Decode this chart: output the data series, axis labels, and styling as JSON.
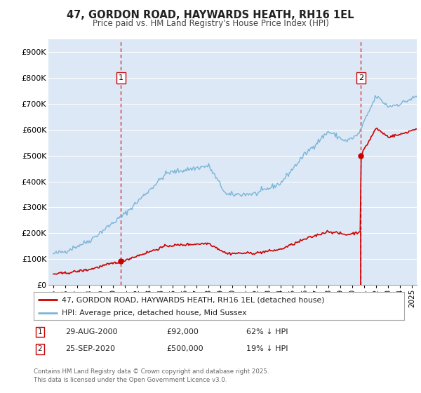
{
  "title": "47, GORDON ROAD, HAYWARDS HEATH, RH16 1EL",
  "subtitle": "Price paid vs. HM Land Registry's House Price Index (HPI)",
  "ylim": [
    0,
    950000
  ],
  "yticks": [
    0,
    100000,
    200000,
    300000,
    400000,
    500000,
    600000,
    700000,
    800000,
    900000
  ],
  "ytick_labels": [
    "£0",
    "£100K",
    "£200K",
    "£300K",
    "£400K",
    "£500K",
    "£600K",
    "£700K",
    "£800K",
    "£900K"
  ],
  "hpi_color": "#7ab4d8",
  "price_color": "#cc0000",
  "vline_color": "#cc0000",
  "bg_color": "#dce8f5",
  "plot_bg": "#ffffff",
  "legend_label_price": "47, GORDON ROAD, HAYWARDS HEATH, RH16 1EL (detached house)",
  "legend_label_hpi": "HPI: Average price, detached house, Mid Sussex",
  "sale1_date": "29-AUG-2000",
  "sale1_price": "£92,000",
  "sale1_hpi": "62% ↓ HPI",
  "sale1_x": 2000.66,
  "sale1_y": 92000,
  "sale2_date": "25-SEP-2020",
  "sale2_price": "£500,000",
  "sale2_hpi": "19% ↓ HPI",
  "sale2_x": 2020.72,
  "sale2_y": 500000,
  "footer": "Contains HM Land Registry data © Crown copyright and database right 2025.\nThis data is licensed under the Open Government Licence v3.0.",
  "xlim_left": 1994.6,
  "xlim_right": 2025.4
}
